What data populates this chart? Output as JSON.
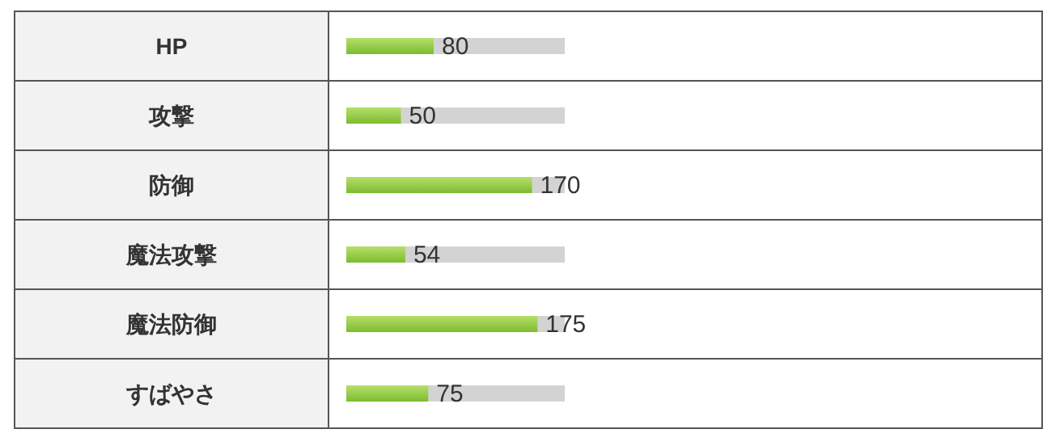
{
  "chart_data": {
    "type": "bar",
    "orientation": "horizontal",
    "categories": [
      "HP",
      "攻撃",
      "防御",
      "魔法攻撃",
      "魔法防御",
      "すばやさ"
    ],
    "values": [
      80,
      50,
      170,
      54,
      175,
      75
    ],
    "color": "#7dbb2f",
    "xlim": [
      0,
      200
    ],
    "data_labels": true
  }
}
